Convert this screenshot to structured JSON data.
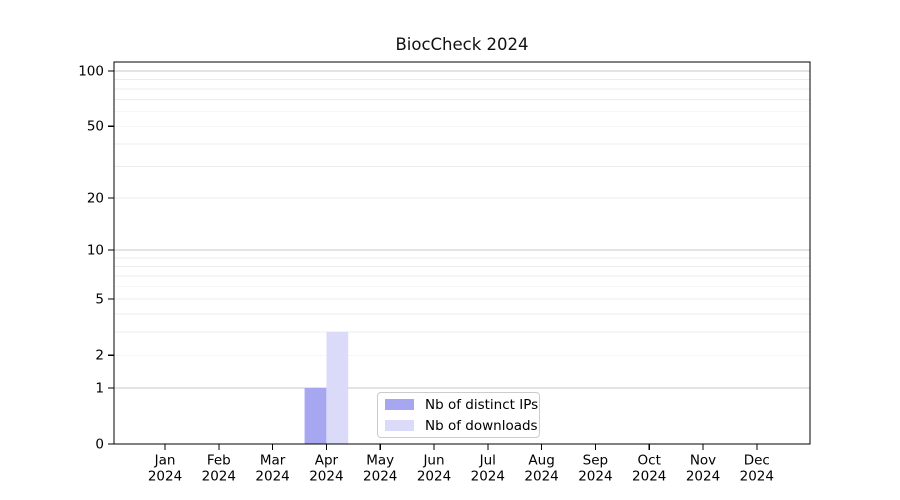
{
  "chart_data": {
    "type": "bar",
    "title": "BiocCheck 2024",
    "months": [
      "Jan",
      "Feb",
      "Mar",
      "Apr",
      "May",
      "Jun",
      "Jul",
      "Aug",
      "Sep",
      "Oct",
      "Nov",
      "Dec"
    ],
    "year_label": "2024",
    "series": [
      {
        "name": "Nb of distinct IPs",
        "color": "#a6a6f1",
        "values": [
          0,
          0,
          0,
          1,
          0,
          0,
          0,
          0,
          0,
          0,
          0,
          0
        ]
      },
      {
        "name": "Nb of downloads",
        "color": "#dbdbf9",
        "values": [
          0,
          0,
          0,
          3,
          0,
          0,
          0,
          0,
          0,
          0,
          0,
          0
        ]
      }
    ],
    "xlabel": "",
    "ylabel": "",
    "y_ticks": [
      0,
      1,
      2,
      5,
      10,
      20,
      50,
      100
    ],
    "y_major_gridlines": [
      1,
      10,
      100
    ],
    "y_minor_gridlines": [
      2,
      3,
      4,
      5,
      6,
      7,
      8,
      9,
      20,
      30,
      40,
      50,
      60,
      70,
      80,
      90
    ],
    "y_scale": "log1p",
    "ylim": [
      0,
      113
    ],
    "grid": "horizontal",
    "legend_position": "lower center",
    "colors": {
      "axis": "#000000",
      "grid_major": "#c8c8c8",
      "grid_minor": "#ececec",
      "background": "#ffffff",
      "text": "#000000"
    }
  }
}
